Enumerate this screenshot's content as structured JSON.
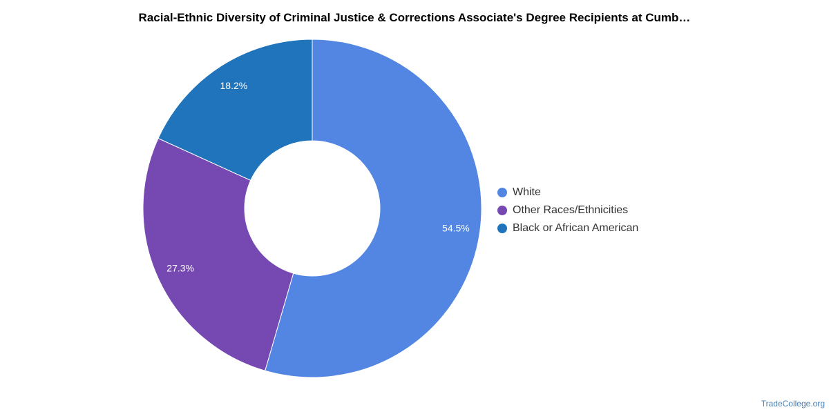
{
  "chart_data": {
    "type": "pie",
    "title": "Racial-Ethnic Diversity of Criminal Justice & Corrections Associate's Degree Recipients at Cumb…",
    "slices": [
      {
        "label": "White",
        "value": 54.5,
        "value_label": "54.5%",
        "color": "#5286e2"
      },
      {
        "label": "Other Races/Ethnicities",
        "value": 27.3,
        "value_label": "27.3%",
        "color": "#7649b2"
      },
      {
        "label": "Black or African American",
        "value": 18.2,
        "value_label": "18.2%",
        "color": "#1f74bb"
      }
    ],
    "donut": true,
    "legend_position": "right"
  },
  "credit": "TradeCollege.org"
}
